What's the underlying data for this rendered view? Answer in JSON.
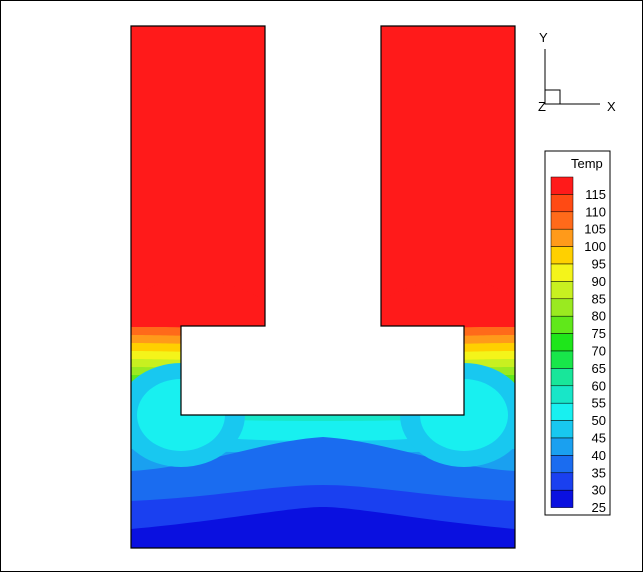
{
  "chart_data": {
    "type": "heatmap",
    "title": "",
    "legend": {
      "title": "Temp",
      "placement": "right",
      "levels": [
        115,
        110,
        105,
        100,
        95,
        90,
        85,
        80,
        75,
        70,
        65,
        60,
        55,
        50,
        45,
        40,
        35,
        30,
        25
      ],
      "level_labels": [
        "115",
        "110",
        "105",
        "100",
        "95",
        "90",
        "85",
        "80",
        "75",
        "70",
        "65",
        "60",
        "55",
        "50",
        "45",
        "40",
        "35",
        "30",
        "25"
      ],
      "colors": [
        "#ff1a1a",
        "#ff4a14",
        "#ff6a1a",
        "#ff9a1a",
        "#ffd000",
        "#f4f41a",
        "#c8f020",
        "#9aea20",
        "#60e81a",
        "#1ee61a",
        "#18e64a",
        "#18e69a",
        "#18e6c8",
        "#18f0f0",
        "#18c8f0",
        "#1aa0f0",
        "#1a6cf0",
        "#1a40f0",
        "#0a10e0"
      ]
    },
    "fields": [
      {
        "name": "Temp",
        "min": 25,
        "max": 118
      }
    ],
    "triad": {
      "labels": [
        "Y",
        "X",
        "Z"
      ]
    }
  }
}
